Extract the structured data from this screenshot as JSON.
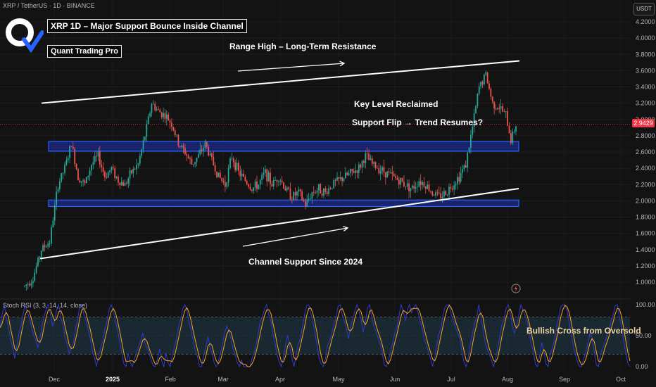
{
  "header": {
    "symbol_line": "XRP / TetherUS · 1D · BINANCE",
    "currency": "USDT",
    "last_price": "2.9429"
  },
  "titles": {
    "main": "XRP 1D – Major Support Bounce Inside Channel",
    "author": "Quant Trading Pro"
  },
  "annotations": {
    "range_high": "Range High – Long-Term Resistance",
    "key_level": "Key Level Reclaimed",
    "support_flip": "Support Flip → Trend Resumes?",
    "channel_support": "Channel Support Since 2024"
  },
  "indicator": {
    "label": "Stoch RSI (3, 3, 14, 14, close)",
    "annotation": "Bullish Cross from Oversold",
    "ticks": [
      "100.00",
      "50.00",
      "0.00"
    ]
  },
  "colors": {
    "background": "#131313",
    "up": "#26a69a",
    "down": "#ef5350",
    "zone_fill": "#1e2a8a",
    "zone_border": "#2962ff",
    "stoch_k": "#2f3cc9",
    "stoch_d": "#f7a823",
    "stoch_band": "#1f3a4a",
    "last_price": "#f23645"
  },
  "chart_data": {
    "type": "candlestick",
    "y_axis_ticks": [
      "4.2000",
      "4.0000",
      "3.8000",
      "3.6000",
      "3.4000",
      "3.2000",
      "3.0000",
      "2.8000",
      "2.6000",
      "2.4000",
      "2.2000",
      "2.0000",
      "1.8000",
      "1.6000",
      "1.4000",
      "1.2000",
      "1.0000"
    ],
    "x_axis_ticks": [
      "Dec",
      "2025",
      "Feb",
      "Mar",
      "Apr",
      "May",
      "Jun",
      "Jul",
      "Aug",
      "Sep",
      "Oct"
    ],
    "ylim": [
      0.85,
      4.3
    ],
    "close_path": [
      [
        0,
        0.95
      ],
      [
        5,
        1.05
      ],
      [
        10,
        1.4
      ],
      [
        15,
        1.5
      ],
      [
        20,
        2.2
      ],
      [
        24,
        2.4
      ],
      [
        28,
        2.7
      ],
      [
        32,
        2.3
      ],
      [
        36,
        2.2
      ],
      [
        40,
        2.45
      ],
      [
        44,
        2.55
      ],
      [
        48,
        2.3
      ],
      [
        52,
        2.4
      ],
      [
        56,
        2.25
      ],
      [
        60,
        2.2
      ],
      [
        64,
        2.35
      ],
      [
        68,
        2.45
      ],
      [
        72,
        2.8
      ],
      [
        76,
        3.2
      ],
      [
        80,
        3.1
      ],
      [
        84,
        3.05
      ],
      [
        88,
        2.95
      ],
      [
        92,
        2.7
      ],
      [
        96,
        2.6
      ],
      [
        100,
        2.45
      ],
      [
        104,
        2.55
      ],
      [
        108,
        2.7
      ],
      [
        112,
        2.5
      ],
      [
        116,
        2.3
      ],
      [
        120,
        2.2
      ],
      [
        124,
        2.55
      ],
      [
        128,
        2.35
      ],
      [
        132,
        2.25
      ],
      [
        136,
        2.15
      ],
      [
        140,
        2.2
      ],
      [
        144,
        2.35
      ],
      [
        148,
        2.2
      ],
      [
        152,
        2.3
      ],
      [
        156,
        2.15
      ],
      [
        160,
        2.05
      ],
      [
        164,
        2.1
      ],
      [
        168,
        1.95
      ],
      [
        172,
        2.1
      ],
      [
        176,
        2.15
      ],
      [
        180,
        2.1
      ],
      [
        184,
        2.2
      ],
      [
        188,
        2.25
      ],
      [
        192,
        2.3
      ],
      [
        196,
        2.35
      ],
      [
        200,
        2.4
      ],
      [
        204,
        2.55
      ],
      [
        208,
        2.45
      ],
      [
        212,
        2.4
      ],
      [
        216,
        2.35
      ],
      [
        220,
        2.3
      ],
      [
        224,
        2.25
      ],
      [
        228,
        2.2
      ],
      [
        232,
        2.15
      ],
      [
        236,
        2.25
      ],
      [
        240,
        2.2
      ],
      [
        244,
        2.1
      ],
      [
        248,
        2.05
      ],
      [
        252,
        2.1
      ],
      [
        256,
        2.2
      ],
      [
        260,
        2.3
      ],
      [
        264,
        2.45
      ],
      [
        268,
        2.9
      ],
      [
        272,
        3.4
      ],
      [
        276,
        3.55
      ],
      [
        280,
        3.2
      ],
      [
        284,
        3.15
      ],
      [
        288,
        3.05
      ],
      [
        291,
        2.75
      ],
      [
        294,
        2.94
      ]
    ],
    "zones": [
      {
        "from": 2.61,
        "to": 2.73
      },
      {
        "from": 1.93,
        "to": 2.01
      }
    ],
    "channel": {
      "upper": [
        [
          0,
          3.2
        ],
        [
          294,
          3.72
        ]
      ],
      "lower": [
        [
          0,
          1.29
        ],
        [
          294,
          2.15
        ]
      ]
    },
    "stoch_rsi": {
      "range": [
        0,
        100
      ],
      "bands": [
        20,
        80
      ]
    }
  }
}
